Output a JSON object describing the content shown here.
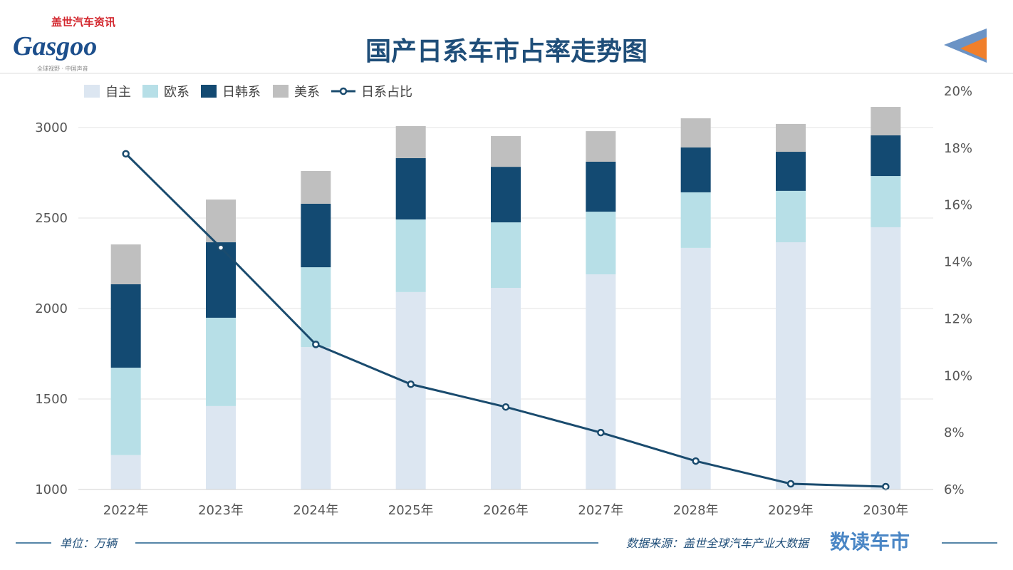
{
  "header": {
    "title": "国产日系车市占率走势图",
    "logo_text": "Gasgoo",
    "logo_cn": "盖世汽车资讯",
    "logo_tagline": "全球视野 · 中国声音"
  },
  "footer": {
    "unit": "单位：万辆",
    "source": "数据来源：盖世全球汽车产业大数据",
    "brand": "数读车市"
  },
  "chart_data": {
    "type": "bar",
    "stacked": true,
    "title": "国产日系车市占率走势图",
    "categories": [
      "2022年",
      "2023年",
      "2024年",
      "2025年",
      "2026年",
      "2027年",
      "2028年",
      "2029年",
      "2030年"
    ],
    "series": [
      {
        "name": "自主",
        "color": "#dce6f1",
        "values": [
          1190,
          1461,
          1787,
          2091,
          2114,
          2189,
          2335,
          2366,
          2449
        ]
      },
      {
        "name": "欧系",
        "color": "#b7dfe7",
        "values": [
          483,
          488,
          441,
          401,
          362,
          346,
          307,
          284,
          283
        ]
      },
      {
        "name": "日韩系",
        "color": "#134a72",
        "values": [
          461,
          417,
          351,
          339,
          307,
          276,
          248,
          216,
          225
        ]
      },
      {
        "name": "美系",
        "color": "#bfbfbf",
        "values": [
          220,
          236,
          181,
          177,
          170,
          169,
          161,
          154,
          157
        ]
      }
    ],
    "line_series": {
      "name": "日系占比",
      "type": "line",
      "axis": "right",
      "color": "#1a4b6e",
      "unit": "%",
      "values": [
        17.8,
        14.5,
        11.1,
        9.7,
        8.9,
        8.0,
        7.0,
        6.2,
        6.1
      ]
    },
    "ylim": [
      1000,
      3000
    ],
    "yticks": [
      "1000",
      "1500",
      "2000",
      "2500",
      "3000"
    ],
    "y2lim": [
      6,
      20
    ],
    "y2ticks": [
      "6%",
      "8%",
      "10%",
      "12%",
      "14%",
      "16%",
      "18%",
      "20%"
    ],
    "grid": true,
    "legend": "top-left"
  }
}
